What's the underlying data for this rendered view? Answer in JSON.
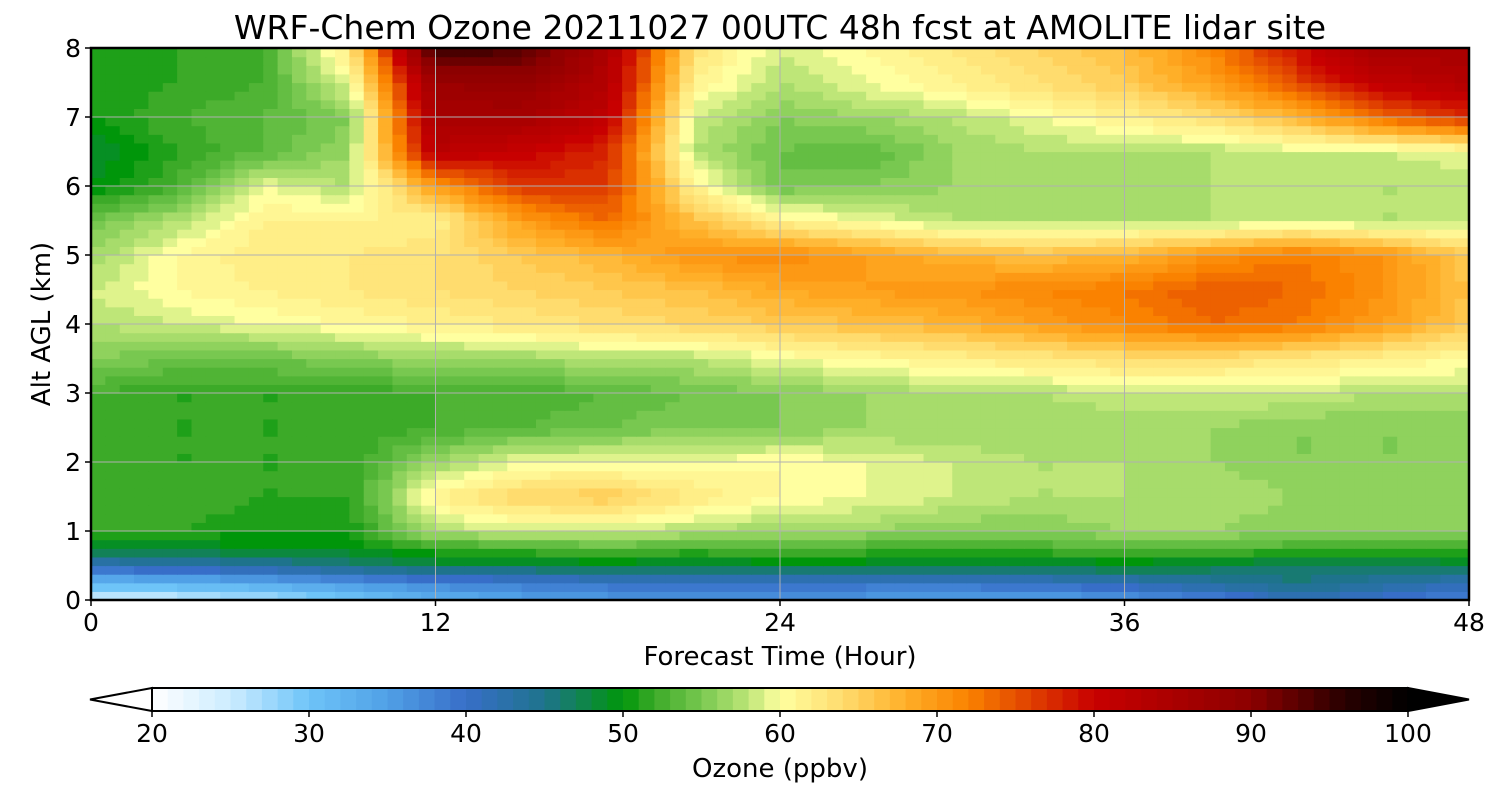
{
  "chart_data": {
    "type": "heatmap",
    "title": "WRF-Chem Ozone  20211027 00UTC 48h fcst at AMOLITE lidar site",
    "xlabel": "Forecast Time (Hour)",
    "ylabel": "Alt AGL (km)",
    "xlim": [
      0,
      48
    ],
    "ylim": [
      0,
      8
    ],
    "x_ticks": [
      0,
      12,
      24,
      36,
      48
    ],
    "y_ticks": [
      0,
      1,
      2,
      3,
      4,
      5,
      6,
      7,
      8
    ],
    "grid": true,
    "x": [
      0,
      3,
      6,
      9,
      12,
      15,
      18,
      21,
      24,
      27,
      30,
      33,
      36,
      39,
      42,
      45,
      48
    ],
    "y": [
      0,
      0.25,
      0.5,
      0.75,
      1,
      1.5,
      2,
      2.5,
      3,
      3.5,
      4,
      4.5,
      5,
      5.5,
      6,
      6.5,
      7,
      7.5,
      8
    ],
    "z": [
      [
        24,
        25,
        27,
        30,
        33,
        35,
        36,
        37,
        36,
        36,
        35,
        35,
        36,
        38,
        42,
        40,
        38
      ],
      [
        32,
        33,
        34,
        36,
        38,
        39,
        40,
        40,
        41,
        40,
        40,
        41,
        42,
        44,
        46,
        44,
        42
      ],
      [
        42,
        43,
        44,
        46,
        48,
        48,
        49,
        48,
        49,
        49,
        48,
        48,
        49,
        48,
        47,
        47,
        48
      ],
      [
        49,
        49,
        50,
        50,
        52,
        53,
        54,
        53,
        54,
        53,
        53,
        53,
        54,
        54,
        53,
        53,
        53
      ],
      [
        52,
        52,
        51,
        51,
        58,
        59,
        59,
        58,
        57,
        57,
        56,
        56,
        57,
        57,
        56,
        56,
        56
      ],
      [
        53,
        53,
        52,
        52,
        62,
        65,
        66,
        63,
        61,
        60,
        59,
        58,
        58,
        58,
        57,
        57,
        57
      ],
      [
        53,
        52,
        52,
        52,
        57,
        60,
        60,
        60,
        61,
        60,
        59,
        58,
        58,
        57,
        56,
        56,
        56
      ],
      [
        53,
        52,
        52,
        52,
        53,
        54,
        55,
        56,
        56,
        57,
        57,
        57,
        57,
        57,
        56,
        56,
        56
      ],
      [
        53,
        52,
        52,
        52,
        53,
        53,
        54,
        55,
        56,
        57,
        58,
        58,
        59,
        59,
        59,
        58,
        58
      ],
      [
        56,
        55,
        55,
        56,
        57,
        57,
        58,
        58,
        60,
        61,
        62,
        63,
        64,
        64,
        63,
        62,
        61
      ],
      [
        58,
        59,
        60,
        61,
        62,
        63,
        64,
        65,
        66,
        67,
        68,
        70,
        72,
        74,
        73,
        70,
        66
      ],
      [
        59,
        61,
        62,
        63,
        64,
        65,
        66,
        67,
        69,
        70,
        71,
        72,
        73,
        75,
        74,
        71,
        67
      ],
      [
        57,
        61,
        63,
        63,
        64,
        66,
        68,
        71,
        72,
        70,
        68,
        67,
        68,
        71,
        73,
        71,
        66
      ],
      [
        55,
        58,
        62,
        62,
        62,
        70,
        74,
        67,
        62,
        60,
        58,
        58,
        58,
        58,
        59,
        58,
        58
      ],
      [
        50,
        53,
        60,
        58,
        70,
        77,
        77,
        62,
        55,
        56,
        57,
        57,
        57,
        58,
        58,
        58,
        58
      ],
      [
        49,
        52,
        54,
        57,
        83,
        81,
        78,
        58,
        55,
        54,
        57,
        58,
        58,
        58,
        59,
        59,
        60
      ],
      [
        51,
        53,
        54,
        56,
        86,
        86,
        82,
        59,
        56,
        57,
        58,
        60,
        62,
        64,
        68,
        74,
        78
      ],
      [
        51,
        52,
        53,
        60,
        88,
        89,
        84,
        62,
        58,
        60,
        62,
        64,
        66,
        70,
        76,
        82,
        84
      ],
      [
        52,
        52,
        53,
        63,
        96,
        94,
        85,
        64,
        59,
        61,
        63,
        65,
        67,
        72,
        80,
        86,
        86
      ]
    ],
    "colorbar": {
      "label": "Ozone  (ppbv)",
      "min": 20,
      "max": 100,
      "extend": "both",
      "orientation": "horizontal",
      "location": "bottom",
      "ticks": [
        20,
        30,
        40,
        50,
        60,
        70,
        80,
        90,
        100
      ]
    }
  }
}
